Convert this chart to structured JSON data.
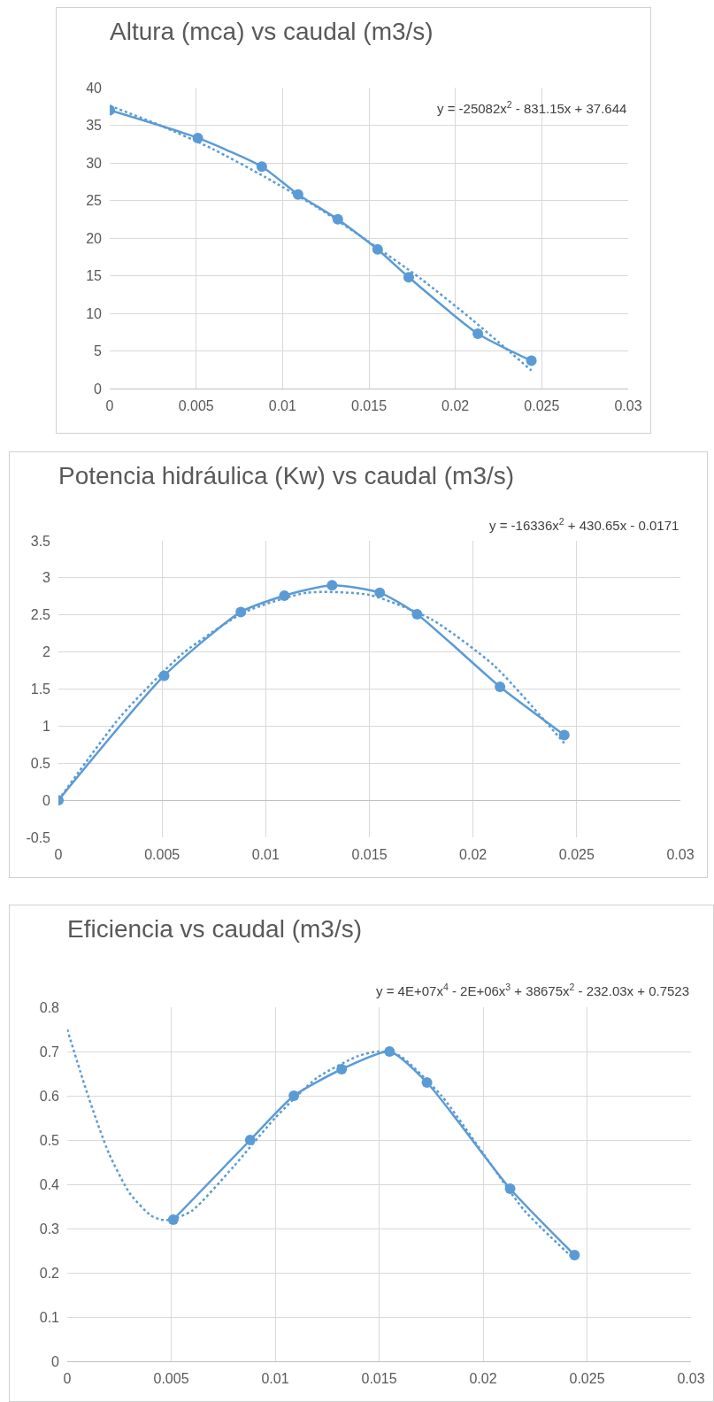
{
  "chart_data": [
    {
      "type": "line",
      "title": "Altura (mca) vs caudal (m3/s)",
      "xlim": [
        0,
        0.03
      ],
      "xticks": [
        0,
        0.005,
        0.01,
        0.015,
        0.02,
        0.025,
        0.03
      ],
      "ylim": [
        0,
        40
      ],
      "yticks": [
        0,
        5,
        10,
        15,
        20,
        25,
        30,
        35,
        40
      ],
      "grid": true,
      "marker": "circle",
      "line_style": "solid",
      "x": [
        0,
        0.0051,
        0.0088,
        0.0109,
        0.0132,
        0.0155,
        0.0173,
        0.0213,
        0.0244
      ],
      "series": [
        {
          "color": "#5b9bd5",
          "values": [
            37.0,
            33.3,
            29.5,
            25.8,
            22.5,
            18.5,
            14.8,
            7.3,
            3.7
          ]
        },
        {
          "type": "line",
          "marker": "none",
          "line_style": "dotted",
          "color": "#5b9bd5",
          "x": [
            0,
            0.003,
            0.006,
            0.009,
            0.012,
            0.015,
            0.018,
            0.021,
            0.0244
          ],
          "values": [
            37.6,
            34.9,
            31.8,
            28.1,
            24.1,
            19.5,
            14.6,
            9.1,
            2.4
          ]
        }
      ],
      "annotations": [
        "y = -25082x$^{2}$ - 831.15x + 37.644"
      ]
    },
    {
      "type": "line",
      "title": "Potencia hidráulica (Kw) vs caudal (m3/s)",
      "xlim": [
        0,
        0.03
      ],
      "xticks": [
        0,
        0.005,
        0.01,
        0.015,
        0.02,
        0.025,
        0.03
      ],
      "ylim": [
        -0.5,
        3.5
      ],
      "yticks": [
        -0.5,
        0,
        0.5,
        1,
        1.5,
        2,
        2.5,
        3,
        3.5
      ],
      "grid": true,
      "marker": "circle",
      "line_style": "solid",
      "x": [
        0,
        0.0051,
        0.0088,
        0.0109,
        0.0132,
        0.0155,
        0.0173,
        0.0213,
        0.0244
      ],
      "series": [
        {
          "color": "#5b9bd5",
          "values": [
            0,
            1.68,
            2.54,
            2.76,
            2.9,
            2.8,
            2.51,
            1.53,
            0.88
          ]
        },
        {
          "type": "line",
          "marker": "none",
          "line_style": "dotted",
          "color": "#5b9bd5",
          "x": [
            0,
            0.003,
            0.006,
            0.009,
            0.012,
            0.015,
            0.018,
            0.021,
            0.0244
          ],
          "values": [
            0,
            1.13,
            1.98,
            2.54,
            2.8,
            2.77,
            2.44,
            1.82,
            0.77
          ]
        }
      ],
      "annotations": [
        "y = -16336x$^{2}$ + 430.65x - 0.0171"
      ]
    },
    {
      "type": "line",
      "title": "Eficiencia vs caudal (m3/s)",
      "xlim": [
        0,
        0.03
      ],
      "xticks": [
        0,
        0.005,
        0.01,
        0.015,
        0.02,
        0.025,
        0.03
      ],
      "ylim": [
        0,
        0.8
      ],
      "yticks": [
        0,
        0.1,
        0.2,
        0.3,
        0.4,
        0.5,
        0.6,
        0.7,
        0.8
      ],
      "grid": true,
      "marker": "circle",
      "line_style": "solid",
      "x": [
        0.0051,
        0.0088,
        0.0109,
        0.0132,
        0.0155,
        0.0173,
        0.0213,
        0.0244
      ],
      "series": [
        {
          "color": "#5b9bd5",
          "values": [
            0.32,
            0.5,
            0.6,
            0.66,
            0.7,
            0.63,
            0.39,
            0.24
          ]
        },
        {
          "type": "line",
          "marker": "none",
          "line_style": "dotted",
          "color": "#5b9bd5",
          "x": [
            0,
            0.001,
            0.002,
            0.003,
            0.004,
            0.0045,
            0.005,
            0.006,
            0.008,
            0.01,
            0.012,
            0.014,
            0.015,
            0.016,
            0.018,
            0.02,
            0.022,
            0.0244
          ],
          "values": [
            0.75,
            0.6,
            0.47,
            0.38,
            0.33,
            0.32,
            0.32,
            0.34,
            0.44,
            0.55,
            0.64,
            0.69,
            0.7,
            0.69,
            0.6,
            0.47,
            0.34,
            0.23
          ]
        }
      ],
      "annotations": [
        "y = 4E+07x$^{4}$ - 2E+06x$^{3}$ + 38675x$^{2}$ - 232.03x + 0.7523"
      ]
    }
  ]
}
